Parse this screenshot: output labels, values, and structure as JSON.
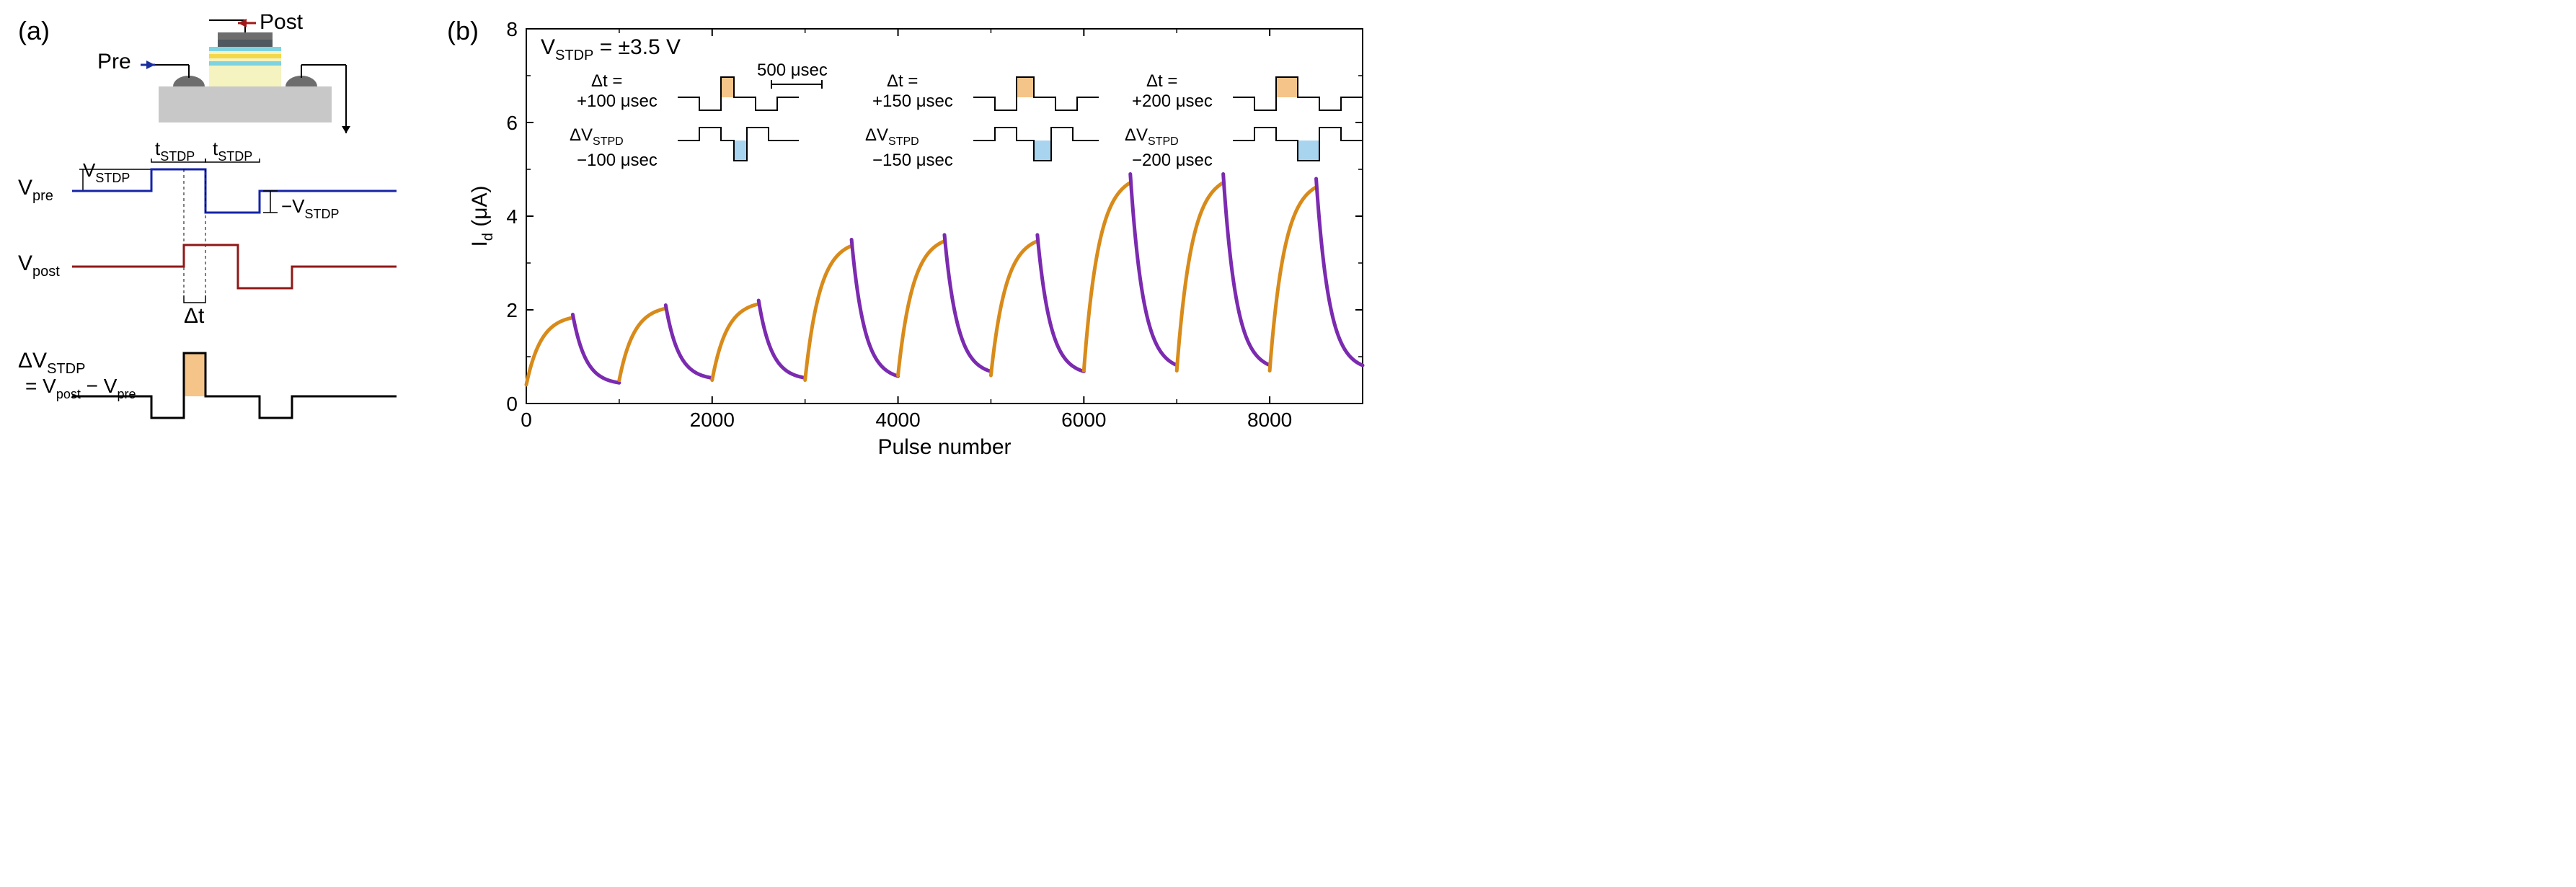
{
  "panelA": {
    "label": "(a)",
    "pre_label": "Pre",
    "post_label": "Post",
    "pre_arrow_color": "#1a2f9e",
    "post_arrow_color": "#a01818",
    "device": {
      "substrate_color": "#c8c8c8",
      "contact_color": "#6d6d6d",
      "channel_color": "#f5f3c0",
      "stack_dark": "#50595f",
      "stack_yellow": "#f3d84a",
      "stack_cyan": "#7ed3e0"
    },
    "labels": {
      "v_pre": "V_pre",
      "v_post": "V_post",
      "v_stdp": "V_STDP",
      "neg_v_stdp": "−V_STDP",
      "t_stdp": "t_STDP",
      "dt": "Δt",
      "dv_stdp": "ΔV_STDP",
      "dv_eq": "= V_post − V_pre"
    },
    "colors": {
      "vpre_line": "#1524a8",
      "vpost_line": "#8f1818",
      "dv_line": "#000000",
      "dv_fill": "#f5c489"
    },
    "font": {
      "label_size": 28
    }
  },
  "panelB": {
    "label": "(b)",
    "title_text": "V_STDP = ±3.5 V",
    "x_label": "Pulse number",
    "y_label": "I_d (μA)",
    "xlim": [
      0,
      9000
    ],
    "ylim": [
      0,
      8
    ],
    "xticks": [
      0,
      2000,
      4000,
      6000,
      8000
    ],
    "yticks": [
      0,
      2,
      4,
      6,
      8
    ],
    "tick_fontsize": 28,
    "label_fontsize": 30,
    "axis_linewidth": 2,
    "colors": {
      "rise": "#d88b1a",
      "fall": "#7b2bb0",
      "axis": "#000000"
    },
    "insets": [
      {
        "dt_text": "Δt =",
        "dt_val": "+100 μsec",
        "neg_dt": "−100 μsec",
        "scale_text": "500 μsec"
      },
      {
        "dt_text": "Δt =",
        "dt_val": "+150 μsec",
        "neg_dt": "−150 μsec"
      },
      {
        "dt_text": "Δt =",
        "dt_val": "+200 μsec",
        "neg_dt": "−200 μsec"
      }
    ],
    "inset_label": "ΔV_STPD",
    "inset_colors": {
      "pos_fill": "#f5c489",
      "neg_fill": "#a8d4f0",
      "line": "#000000"
    },
    "peaks": [
      {
        "start": 0,
        "peak": 1.9,
        "base": 0.4
      },
      {
        "start": 1000,
        "peak": 2.1,
        "base": 0.5
      },
      {
        "start": 2000,
        "peak": 2.2,
        "base": 0.5
      },
      {
        "start": 3000,
        "peak": 3.5,
        "base": 0.5
      },
      {
        "start": 4000,
        "peak": 3.6,
        "base": 0.6
      },
      {
        "start": 5000,
        "peak": 3.6,
        "base": 0.6
      },
      {
        "start": 6000,
        "peak": 4.9,
        "base": 0.7
      },
      {
        "start": 7000,
        "peak": 4.9,
        "base": 0.7
      },
      {
        "start": 8000,
        "peak": 4.8,
        "base": 0.7
      }
    ]
  }
}
